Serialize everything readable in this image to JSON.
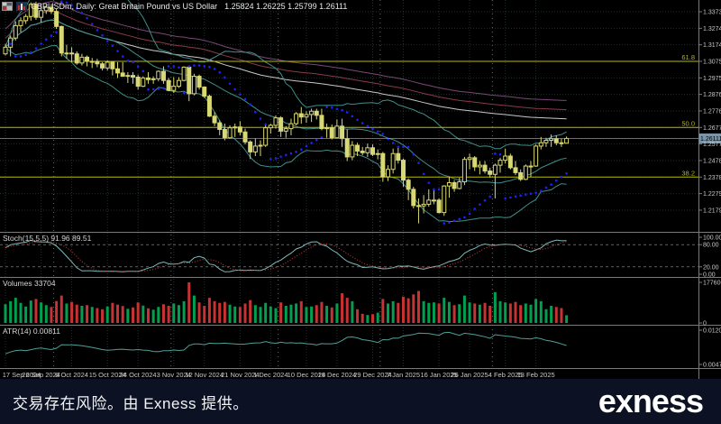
{
  "title_bar": {
    "symbol_title": "GBPUSDm, Daily: Great Britain Pound vs US Dollar",
    "ohlc_values": "1.25824 1.26225 1.25799 1.26111"
  },
  "indicator_labels": {
    "stoch": "Stoch(15,5,5) 91.96 89.51",
    "volumes": "Volumes 33704",
    "atr": "ATR(14) 0.00811"
  },
  "footer": {
    "risk_text": "交易存在风险。由 Exness 提供。",
    "brand_logo": "exness"
  },
  "colors": {
    "background": "#000000",
    "grid": "#223030",
    "month_separator": "#6a6a6a",
    "separator": "#7a7a7a",
    "candle": "#d8d874",
    "sar_dots": "#2020ff",
    "bollinger": "#3f8f87",
    "ma_white": "#c8c8c8",
    "ma_maroon": "#8a3a4a",
    "ma_purple": "#7a4878",
    "fib": "#b8b800",
    "price_line": "#b0b0b0",
    "price_tag_bg": "#7c96a8",
    "stoch_main": "#7fb8b8",
    "stoch_signal": "#c84040",
    "stoch_levels": "#9a9a9a",
    "vol_up": "#00a050",
    "vol_down": "#c83232",
    "atr_line": "#4f9f97",
    "axis_text": "#c8c8c8",
    "footer_bg": "#0c1224"
  },
  "chart_data": [
    {
      "type": "candlestick",
      "title": "GBPUSDm Daily",
      "xlabel": "date",
      "ylabel": "price",
      "ylim": [
        1.21795,
        1.33735
      ],
      "price_axis_ticks": [
        "1.33735",
        "1.32740",
        "1.31745",
        "1.30750",
        "1.29755",
        "1.28760",
        "1.27765",
        "1.26770",
        "1.25775",
        "1.24780",
        "1.23785",
        "1.22790",
        "1.21795"
      ],
      "current_price": 1.26111,
      "current_price_label": "1.26111",
      "time_axis_labels": [
        "17 Sep 2024",
        "26 Sep 2024",
        "6 Oct 2024",
        "15 Oct 2024",
        "24 Oct 2024",
        "3 Nov 2024",
        "12 Nov 2024",
        "21 Nov 2024",
        "1 Dec 2024",
        "10 Dec 2024",
        "19 Dec 2024",
        "29 Dec 2024",
        "7 Jan 2025",
        "16 Jan 2025",
        "26 Jan 2025",
        "4 Feb 2025",
        "13 Feb 2025"
      ],
      "fib_levels": [
        {
          "label": "61.8",
          "price": 1.3075
        },
        {
          "label": "50.0",
          "price": 1.2677
        },
        {
          "label": "38.2",
          "price": 1.23785
        }
      ],
      "month_separator_bars": [
        10,
        33,
        54,
        74,
        96
      ],
      "overlays": {
        "bollinger_period": 20,
        "bollinger_dev": 2,
        "parabolic_sar": true,
        "trend_mas": true
      },
      "candles": [
        [
          1.312,
          1.318,
          1.311,
          1.316
        ],
        [
          1.316,
          1.323,
          1.3105,
          1.3215
        ],
        [
          1.3215,
          1.3315,
          1.32,
          1.329
        ],
        [
          1.329,
          1.334,
          1.325,
          1.332
        ],
        [
          1.332,
          1.336,
          1.33,
          1.3345
        ],
        [
          1.3345,
          1.343,
          1.332,
          1.3418
        ],
        [
          1.3418,
          1.3434,
          1.3325,
          1.334
        ],
        [
          1.334,
          1.341,
          1.331,
          1.338
        ],
        [
          1.338,
          1.3415,
          1.336,
          1.34
        ],
        [
          1.34,
          1.342,
          1.336,
          1.3375
        ],
        [
          1.3375,
          1.339,
          1.327,
          1.3285
        ],
        [
          1.3285,
          1.329,
          1.3105,
          1.3125
        ],
        [
          1.3125,
          1.3175,
          1.309,
          1.3125
        ],
        [
          1.3125,
          1.316,
          1.307,
          1.312
        ],
        [
          1.312,
          1.3135,
          1.3055,
          1.3065
        ],
        [
          1.3065,
          1.312,
          1.305,
          1.31
        ],
        [
          1.31,
          1.311,
          1.3045,
          1.3075
        ],
        [
          1.3075,
          1.3095,
          1.3035,
          1.3075
        ],
        [
          1.3075,
          1.309,
          1.304,
          1.306
        ],
        [
          1.306,
          1.307,
          1.302,
          1.3035
        ],
        [
          1.3035,
          1.308,
          1.302,
          1.307
        ],
        [
          1.307,
          1.3075,
          1.299,
          1.303
        ],
        [
          1.303,
          1.307,
          1.2975,
          1.3005
        ],
        [
          1.3005,
          1.307,
          1.2985,
          1.2985
        ],
        [
          1.2985,
          1.301,
          1.2945,
          1.299
        ],
        [
          1.299,
          1.301,
          1.294,
          1.298
        ],
        [
          1.298,
          1.2995,
          1.2905,
          1.2925
        ],
        [
          1.2925,
          1.2985,
          1.292,
          1.2975
        ],
        [
          1.2975,
          1.301,
          1.294,
          1.2965
        ],
        [
          1.2965,
          1.2985,
          1.294,
          1.297
        ],
        [
          1.297,
          1.302,
          1.2955,
          1.3015
        ],
        [
          1.3015,
          1.3045,
          1.294,
          1.296
        ],
        [
          1.296,
          1.2975,
          1.2895,
          1.29
        ],
        [
          1.29,
          1.298,
          1.2885,
          1.2925
        ],
        [
          1.2925,
          1.298,
          1.2915,
          1.296
        ],
        [
          1.296,
          1.3045,
          1.2955,
          1.304
        ],
        [
          1.304,
          1.305,
          1.2835,
          1.288
        ],
        [
          1.288,
          1.3,
          1.287,
          1.2985
        ],
        [
          1.2985,
          1.2995,
          1.2905,
          1.292
        ],
        [
          1.292,
          1.2925,
          1.2855,
          1.2865
        ],
        [
          1.2865,
          1.2875,
          1.274,
          1.2745
        ],
        [
          1.2745,
          1.277,
          1.2685,
          1.2705
        ],
        [
          1.2705,
          1.272,
          1.263,
          1.2665
        ],
        [
          1.2665,
          1.27,
          1.26,
          1.2615
        ],
        [
          1.2615,
          1.269,
          1.261,
          1.2675
        ],
        [
          1.2675,
          1.27,
          1.262,
          1.268
        ],
        [
          1.268,
          1.2715,
          1.263,
          1.265
        ],
        [
          1.265,
          1.267,
          1.2575,
          1.259
        ],
        [
          1.259,
          1.26,
          1.2487,
          1.253
        ],
        [
          1.253,
          1.261,
          1.2505,
          1.2565
        ],
        [
          1.2565,
          1.26,
          1.2505,
          1.257
        ],
        [
          1.257,
          1.269,
          1.256,
          1.2675
        ],
        [
          1.2675,
          1.27,
          1.264,
          1.269
        ],
        [
          1.269,
          1.275,
          1.267,
          1.2735
        ],
        [
          1.2735,
          1.2745,
          1.262,
          1.2655
        ],
        [
          1.2655,
          1.2685,
          1.2615,
          1.267
        ],
        [
          1.267,
          1.273,
          1.263,
          1.27
        ],
        [
          1.27,
          1.277,
          1.269,
          1.276
        ],
        [
          1.276,
          1.28,
          1.27,
          1.274
        ],
        [
          1.274,
          1.2775,
          1.2705,
          1.2755
        ],
        [
          1.2755,
          1.279,
          1.271,
          1.2775
        ],
        [
          1.2775,
          1.279,
          1.2725,
          1.275
        ],
        [
          1.275,
          1.279,
          1.266,
          1.267
        ],
        [
          1.267,
          1.27,
          1.2615,
          1.2675
        ],
        [
          1.2675,
          1.2695,
          1.2605,
          1.2615
        ],
        [
          1.2615,
          1.2725,
          1.261,
          1.2685
        ],
        [
          1.2685,
          1.273,
          1.256,
          1.261
        ],
        [
          1.261,
          1.2665,
          1.2475,
          1.25
        ],
        [
          1.25,
          1.2595,
          1.248,
          1.257
        ],
        [
          1.257,
          1.2585,
          1.2505,
          1.2535
        ],
        [
          1.2535,
          1.256,
          1.251,
          1.2525
        ],
        [
          1.2525,
          1.258,
          1.25,
          1.2555
        ],
        [
          1.2555,
          1.2575,
          1.2505,
          1.2515
        ],
        [
          1.2515,
          1.2545,
          1.2485,
          1.252
        ],
        [
          1.252,
          1.253,
          1.235,
          1.238
        ],
        [
          1.238,
          1.245,
          1.2355,
          1.2425
        ],
        [
          1.2425,
          1.255,
          1.24,
          1.252
        ],
        [
          1.252,
          1.256,
          1.246,
          1.248
        ],
        [
          1.248,
          1.249,
          1.232,
          1.236
        ],
        [
          1.236,
          1.237,
          1.224,
          1.2305
        ],
        [
          1.2305,
          1.232,
          1.219,
          1.2207
        ],
        [
          1.2207,
          1.225,
          1.21,
          1.2205
        ],
        [
          1.2205,
          1.227,
          1.216,
          1.2215
        ],
        [
          1.2215,
          1.2305,
          1.22,
          1.224
        ],
        [
          1.224,
          1.23,
          1.2215,
          1.224
        ],
        [
          1.224,
          1.225,
          1.216,
          1.2165
        ],
        [
          1.2165,
          1.233,
          1.2145,
          1.2325
        ],
        [
          1.2325,
          1.238,
          1.2255,
          1.2345
        ],
        [
          1.2345,
          1.236,
          1.229,
          1.231
        ],
        [
          1.231,
          1.2375,
          1.2305,
          1.235
        ],
        [
          1.235,
          1.25,
          1.233,
          1.2485
        ],
        [
          1.2485,
          1.252,
          1.2425,
          1.2495
        ],
        [
          1.2495,
          1.2505,
          1.2415,
          1.244
        ],
        [
          1.244,
          1.2475,
          1.2395,
          1.245
        ],
        [
          1.245,
          1.2475,
          1.24,
          1.2415
        ],
        [
          1.2415,
          1.2435,
          1.2375,
          1.2395
        ],
        [
          1.2395,
          1.246,
          1.225,
          1.245
        ],
        [
          1.245,
          1.2495,
          1.2405,
          1.248
        ],
        [
          1.248,
          1.255,
          1.246,
          1.2505
        ],
        [
          1.2505,
          1.252,
          1.2425,
          1.2435
        ],
        [
          1.2435,
          1.2475,
          1.239,
          1.2405
        ],
        [
          1.2405,
          1.2425,
          1.2355,
          1.2365
        ],
        [
          1.2365,
          1.2455,
          1.236,
          1.2445
        ],
        [
          1.2445,
          1.2475,
          1.238,
          1.2445
        ],
        [
          1.2445,
          1.2575,
          1.244,
          1.2565
        ],
        [
          1.2565,
          1.262,
          1.2545,
          1.2585
        ],
        [
          1.2585,
          1.2615,
          1.256,
          1.26
        ],
        [
          1.26,
          1.2635,
          1.256,
          1.261
        ],
        [
          1.261,
          1.263,
          1.257,
          1.2585
        ],
        [
          1.2585,
          1.261,
          1.256,
          1.2582
        ],
        [
          1.25824,
          1.26225,
          1.25799,
          1.26111
        ]
      ]
    },
    {
      "type": "line",
      "title": "Stoch(15,5,5)",
      "display_values": [
        91.96,
        89.51
      ],
      "levels": [
        {
          "label": "100.00",
          "value": 100
        },
        {
          "label": "80.00",
          "value": 80
        },
        {
          "label": "20.00",
          "value": 20
        },
        {
          "label": "0.00",
          "value": 0
        }
      ],
      "ylim": [
        0,
        100
      ],
      "derived_from": "candles"
    },
    {
      "type": "bar",
      "title": "Volumes",
      "current": 33704,
      "scale_max_label": "177606",
      "scale_min_label": "0",
      "ylim": [
        0,
        177606
      ],
      "values": [
        82000,
        95000,
        110000,
        88000,
        72000,
        98000,
        105000,
        90000,
        78000,
        70000,
        96000,
        120000,
        85000,
        92000,
        80000,
        75000,
        78000,
        70000,
        65000,
        60000,
        72000,
        88000,
        80000,
        74000,
        62000,
        68000,
        90000,
        76000,
        64000,
        58000,
        70000,
        82000,
        75000,
        85000,
        78000,
        95000,
        177606,
        120000,
        90000,
        75000,
        110000,
        95000,
        88000,
        92000,
        80000,
        72000,
        70000,
        85000,
        100000,
        78000,
        70000,
        88000,
        72000,
        65000,
        90000,
        75000,
        80000,
        85000,
        95000,
        70000,
        72000,
        78000,
        92000,
        75000,
        68000,
        85000,
        130000,
        110000,
        95000,
        60000,
        40000,
        35000,
        38000,
        45000,
        105000,
        85000,
        95000,
        88000,
        115000,
        108000,
        125000,
        140000,
        95000,
        88000,
        90000,
        85000,
        110000,
        92000,
        78000,
        82000,
        120000,
        90000,
        85000,
        80000,
        88000,
        75000,
        135000,
        95000,
        90000,
        85000,
        92000,
        78000,
        85000,
        80000,
        105000,
        95000,
        60000,
        75000,
        70000,
        65000,
        33704
      ]
    },
    {
      "type": "line",
      "title": "ATR(14)",
      "current": 0.00811,
      "scale_max_label": "0.01200",
      "scale_min_label": "0.00476",
      "ylim": [
        0.00476,
        0.012
      ],
      "derived_from": "candles"
    }
  ]
}
